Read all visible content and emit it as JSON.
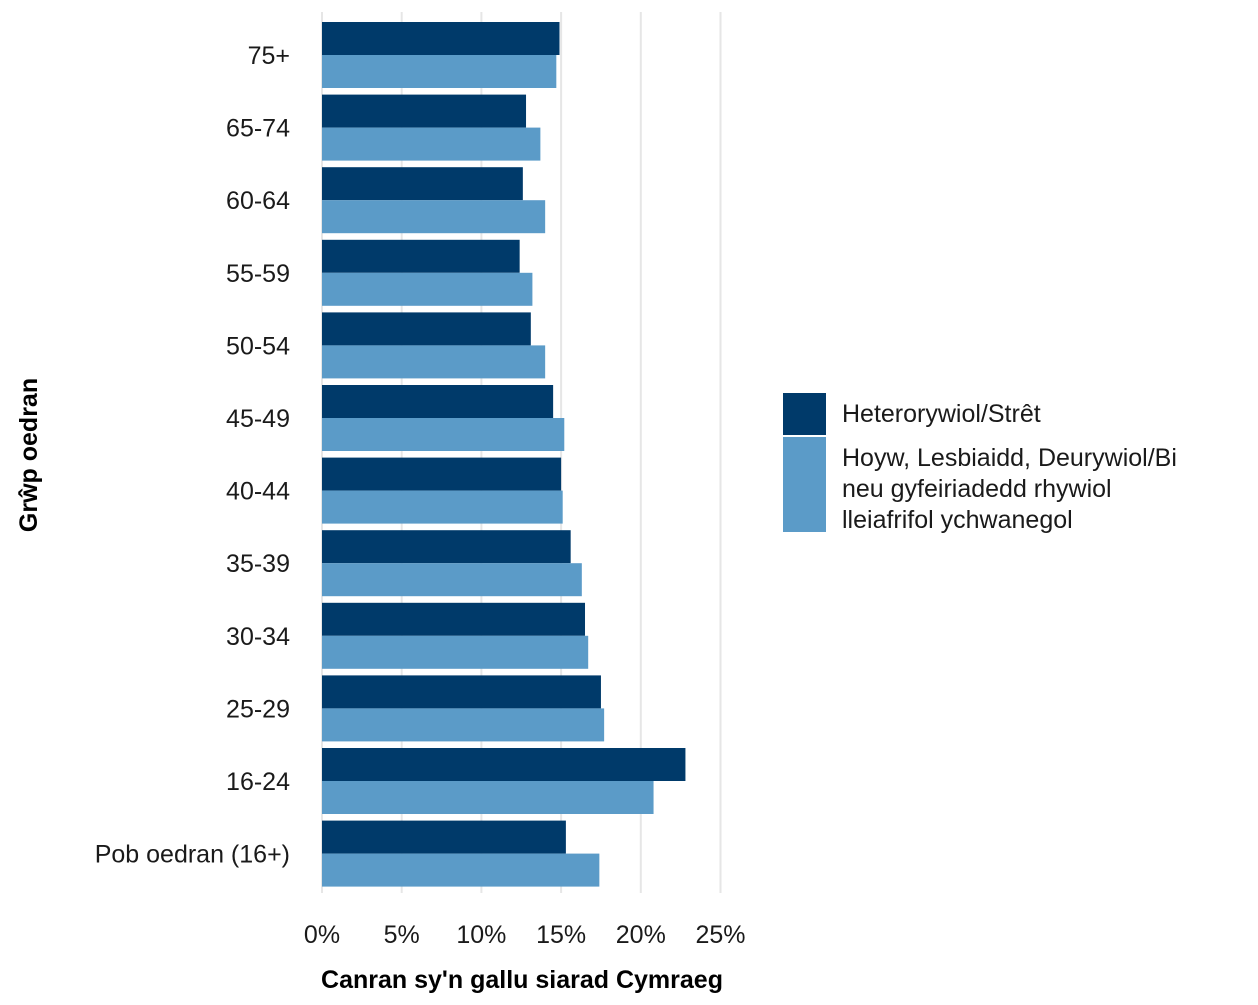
{
  "chart_data": {
    "type": "bar",
    "orientation": "horizontal",
    "categories": [
      "75+",
      "65-74",
      "60-64",
      "55-59",
      "50-54",
      "45-49",
      "40-44",
      "35-39",
      "30-34",
      "25-29",
      "16-24",
      "Pob oedran (16+)"
    ],
    "series": [
      {
        "name": "Heterorywiol/Strêt",
        "color": "#003a6a",
        "values": [
          14.9,
          12.8,
          12.6,
          12.4,
          13.1,
          14.5,
          15.0,
          15.6,
          16.5,
          17.5,
          22.8,
          15.3
        ]
      },
      {
        "name": "Hoyw, Lesbiaidd, Deurywiol/Bi neu gyfeiriadedd rhywiol lleiafrifol ychwanegol",
        "name_lines": [
          "Hoyw, Lesbiaidd, Deurywiol/Bi",
          "neu gyfeiriadedd rhywiol",
          "lleiafrifol ychwanegol"
        ],
        "color": "#5b9bc8",
        "values": [
          14.7,
          13.7,
          14.0,
          13.2,
          14.0,
          15.2,
          15.1,
          16.3,
          16.7,
          17.7,
          20.8,
          17.4
        ]
      }
    ],
    "x_ticks": [
      "0%",
      "5%",
      "10%",
      "15%",
      "20%",
      "25%"
    ],
    "x_tick_values": [
      0,
      5,
      10,
      15,
      20,
      25
    ],
    "xlim": [
      0,
      25
    ],
    "xlabel": "Canran sy'n gallu siarad Cymraeg",
    "ylabel": "Grŵp oedran",
    "grid": "vertical",
    "legend_position": "right"
  }
}
